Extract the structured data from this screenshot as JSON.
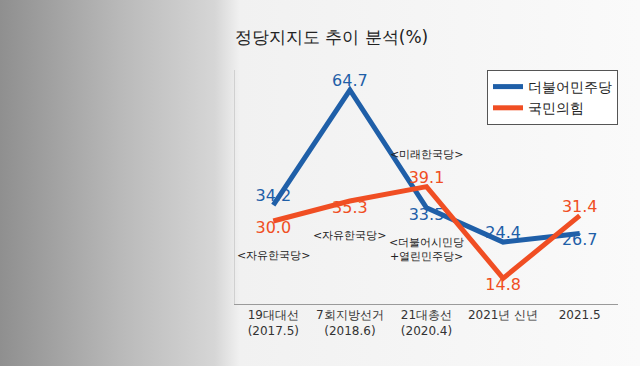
{
  "chart_data": {
    "type": "line",
    "title": "정당지지도 추이 분석(%)",
    "categories": [
      "19대대선\n(2017.5)",
      "7회지방선거\n(2018.6)",
      "21대총선\n(2020.4)",
      "2021년 신년",
      "2021.5"
    ],
    "series": [
      {
        "name": "더불어민주당",
        "color": "#1f5fa8",
        "values": [
          34.2,
          64.7,
          33.5,
          24.4,
          26.7
        ],
        "value_labels": [
          "34.2",
          "64.7",
          "33.5",
          "24.4",
          "26.7"
        ]
      },
      {
        "name": "국민의힘",
        "color": "#f04e23",
        "values": [
          30.0,
          35.3,
          39.1,
          14.8,
          31.4
        ],
        "value_labels": [
          "30.0",
          "35.3",
          "39.1",
          "14.8",
          "31.4"
        ]
      }
    ],
    "annotations": [
      {
        "text": "<자유한국당>",
        "category": "19대대선\n(2017.5)",
        "series": "국민의힘"
      },
      {
        "text": "<자유한국당>",
        "category": "7회지방선거\n(2018.6)",
        "series": "국민의힘"
      },
      {
        "text": "<미래한국당>",
        "category": "21대총선\n(2020.4)",
        "series": "국민의힘"
      },
      {
        "text": "<더불어시민당\n+열린민주당>",
        "category": "21대총선\n(2020.4)",
        "series": "더불어민주당"
      }
    ],
    "ylim": [
      8,
      70
    ],
    "tick_labels": "x",
    "grid": false,
    "data_labels": true,
    "legend": "upper right"
  }
}
